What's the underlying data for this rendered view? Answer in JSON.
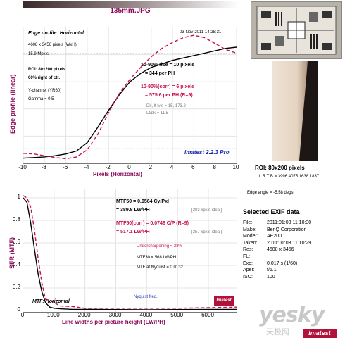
{
  "header": {
    "file_title": "135mm.JPG"
  },
  "edge_plot": {
    "panel_title": "Edge profile: Horizontal",
    "date": "03-Nov-2011 14:28:31",
    "info": [
      "4608 x 3456 pixels (WxH)",
      "15.9 Mpxls"
    ],
    "roi_title": "ROI: 80x200 pixels",
    "roi_sub": "60% right of ctr.",
    "channel": [
      "Y-channel (YR60)",
      "Gamma = 0.5"
    ],
    "rise_label": "10-90% rise = 10 pixels",
    "rise_ph": "= 344 per PH",
    "corr_label": "10-90%(corr) = 6 pixels",
    "corr_ph": "= 575.6 per PH  (R=9)",
    "levels": [
      "Dk, lt lvls = 15, 173.2",
      "Lt/dk = 11.5"
    ],
    "brand": "Imatest 2.2.3 Pro",
    "ylabel": "Edge profile (linear)",
    "xlabel": "Pixels (Horizontal)",
    "xticks": [
      "-10",
      "-8",
      "-6",
      "-4",
      "-2",
      "0",
      "2",
      "4",
      "6",
      "8",
      "10"
    ]
  },
  "chart_data": [
    {
      "type": "line",
      "title": "Edge profile: Horizontal",
      "xlabel": "Pixels (Horizontal)",
      "ylabel": "Edge profile (linear)",
      "xlim": [
        -10,
        10
      ],
      "series": [
        {
          "color": "#000000",
          "x": [
            -10,
            -9,
            -8,
            -7,
            -6,
            -5,
            -4,
            -3,
            -2,
            -1,
            0,
            1,
            2,
            3,
            4,
            5,
            6,
            7,
            8,
            9,
            10
          ],
          "y": [
            0.02,
            0.025,
            0.03,
            0.04,
            0.055,
            0.08,
            0.15,
            0.28,
            0.42,
            0.55,
            0.66,
            0.73,
            0.78,
            0.81,
            0.84,
            0.86,
            0.88,
            0.9,
            0.92,
            0.94,
            0.95
          ]
        },
        {
          "color": "#c8104a",
          "x": [
            -10,
            -9,
            -8,
            -7,
            -6,
            -5,
            -4,
            -3,
            -2,
            -1,
            0,
            1,
            2,
            3,
            4,
            5,
            6,
            7,
            8,
            9,
            10
          ],
          "y": [
            0.06,
            0.055,
            0.04,
            0.025,
            0.015,
            0.03,
            0.09,
            0.22,
            0.4,
            0.56,
            0.68,
            0.78,
            0.87,
            0.94,
            0.99,
            1.03,
            1.05,
            1.03,
            0.98,
            0.93,
            0.9
          ]
        }
      ]
    },
    {
      "type": "line",
      "title": "MTF: Horizontal",
      "xlabel": "Line widths per picture height (LW/PH)",
      "ylabel": "SFR (MTF)",
      "xlim": [
        0,
        6912
      ],
      "ylim": [
        0,
        1
      ],
      "series": [
        {
          "color": "#000000",
          "x": [
            0,
            120,
            240,
            360,
            480,
            600,
            720,
            860,
            1000,
            1200,
            1600,
            2000,
            3000,
            4000,
            5000,
            6000,
            6912
          ],
          "y": [
            1.0,
            0.96,
            0.78,
            0.55,
            0.33,
            0.17,
            0.07,
            0.03,
            0.02,
            0.015,
            0.01,
            0.01,
            0.008,
            0.006,
            0.008,
            0.01,
            0.01
          ]
        },
        {
          "color": "#c8104a",
          "x": [
            0,
            120,
            240,
            360,
            480,
            600,
            720,
            860,
            1000,
            1200,
            1600,
            2000,
            3000,
            4000,
            5000,
            6000,
            6912
          ],
          "y": [
            1.02,
            1.0,
            0.92,
            0.72,
            0.47,
            0.25,
            0.1,
            0.09,
            0.07,
            0.04,
            0.035,
            0.02,
            0.02,
            0.02,
            0.02,
            0.025,
            0.03
          ]
        }
      ]
    }
  ],
  "mtf_plot": {
    "mtf50": "MTF50 = 0.0564 Cy/Pxl",
    "mtf50_lw": "= 389.8 LW/PH",
    "mtf50_ideal": "[203 kpxls ideal]",
    "mtf50c": "MTF50(corr) = 0.0748 C/P  (R=9)",
    "mtf50c_lw": "= 517.1 LW/PH",
    "mtf50c_ideal": "[357 kpxls ideal]",
    "undersharp": "Undersharpening = 28%",
    "mtf30": "MTF30 = 568 LW/PH",
    "nyq_mtf": "MTF at Nyquist = 0.0132",
    "nyquist": "Nyquist freq.",
    "panel_title": "MTF: Horizontal",
    "ylabel": "SFR (MTF)",
    "xlabel": "Line widths per picture height (LW/PH)",
    "xticks": [
      "0",
      "1000",
      "2000",
      "3000",
      "4000",
      "5000",
      "6000"
    ],
    "yticks": [
      "0",
      "0.2",
      "0.4",
      "0.6",
      "0.8",
      "1"
    ]
  },
  "right": {
    "roi_caption": "ROI: 80x200 pixels",
    "lrtb": "L R  T B = 3996 4075  1638 1837",
    "edge_angle": "Edge angle = -5.58 degs",
    "exif_title": "Selected EXIF data",
    "exif": [
      {
        "k": "File:",
        "v": "2011:01:03 11:10:30"
      },
      {
        "k": "Make:",
        "v": "BenQ Corporation"
      },
      {
        "k": "Model:",
        "v": "AE200"
      },
      {
        "k": "Taken:",
        "v": "2011:01:03 11:10:29"
      },
      {
        "k": "Res:",
        "v": "4608 x 3456"
      },
      {
        "k": "FL:",
        "v": ""
      },
      {
        "k": "Exp:",
        "v": "0.017 s  (1/60)"
      },
      {
        "k": "Aper:",
        "v": "f/6.1"
      },
      {
        "k": "ISO:",
        "v": "100"
      }
    ],
    "watermark": "yesky",
    "watermark_sub": "天极网"
  }
}
